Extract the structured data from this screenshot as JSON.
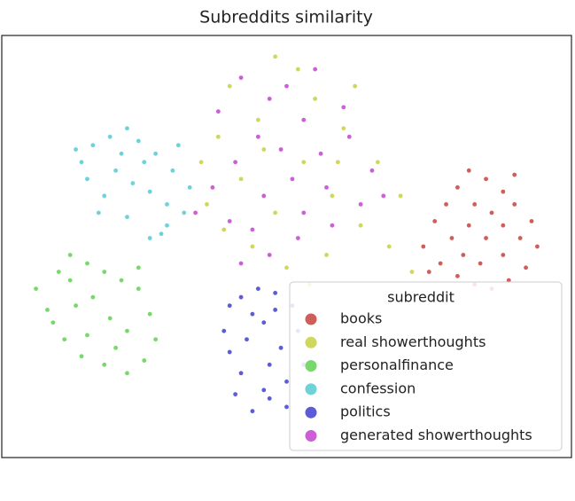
{
  "chart_data": {
    "type": "scatter",
    "title": "Subreddits similarity",
    "legend_title": "subreddit",
    "legend": "lower right",
    "xlim": [
      0,
      100
    ],
    "ylim": [
      0,
      100
    ],
    "series": [
      {
        "name": "books",
        "color": "#cf5e5a",
        "x": [
          74,
          76,
          78,
          80,
          82,
          85,
          88,
          90,
          93,
          94,
          92,
          89,
          86,
          83,
          80,
          77,
          79,
          82,
          85,
          88,
          86,
          83,
          81,
          88,
          91,
          84,
          75,
          90
        ],
        "y": [
          50,
          56,
          60,
          64,
          68,
          66,
          63,
          60,
          56,
          50,
          45,
          42,
          40,
          41,
          43,
          46,
          52,
          55,
          52,
          55,
          58,
          60,
          48,
          48,
          52,
          46,
          44,
          67
        ]
      },
      {
        "name": "real showerthoughts",
        "color": "#cfd85c",
        "x": [
          40,
          48,
          52,
          55,
          45,
          38,
          60,
          66,
          70,
          63,
          57,
          50,
          44,
          36,
          42,
          53,
          58,
          48,
          62,
          35,
          68,
          54,
          46,
          39,
          72,
          59
        ],
        "y": [
          88,
          95,
          92,
          85,
          80,
          76,
          78,
          70,
          62,
          55,
          48,
          45,
          50,
          60,
          66,
          70,
          62,
          58,
          88,
          70,
          50,
          41,
          73,
          54,
          44,
          70
        ]
      },
      {
        "name": "personalfinance",
        "color": "#79d86c",
        "x": [
          6,
          8,
          10,
          12,
          15,
          18,
          21,
          24,
          26,
          27,
          25,
          22,
          18,
          14,
          11,
          9,
          13,
          16,
          19,
          22,
          15,
          20,
          12,
          24
        ],
        "y": [
          40,
          35,
          44,
          48,
          46,
          44,
          42,
          40,
          34,
          28,
          23,
          20,
          22,
          24,
          28,
          32,
          36,
          38,
          33,
          30,
          29,
          26,
          42,
          45
        ]
      },
      {
        "name": "confession",
        "color": "#6dd3d9",
        "x": [
          14,
          16,
          19,
          22,
          24,
          27,
          30,
          33,
          32,
          29,
          26,
          22,
          18,
          15,
          20,
          23,
          26,
          29,
          21,
          25,
          17,
          28,
          13,
          31
        ],
        "y": [
          70,
          74,
          76,
          78,
          75,
          72,
          68,
          64,
          58,
          55,
          52,
          57,
          62,
          66,
          68,
          65,
          63,
          60,
          72,
          70,
          58,
          53,
          73,
          74
        ]
      },
      {
        "name": "politics",
        "color": "#5b5cd6",
        "x": [
          40,
          42,
          45,
          48,
          51,
          54,
          55,
          53,
          50,
          47,
          44,
          46,
          42,
          40,
          39,
          43,
          46,
          49,
          52,
          47,
          44,
          50,
          41,
          48
        ],
        "y": [
          36,
          38,
          40,
          39,
          36,
          32,
          27,
          22,
          18,
          14,
          11,
          16,
          20,
          25,
          30,
          28,
          32,
          26,
          30,
          22,
          34,
          12,
          15,
          35
        ]
      },
      {
        "name": "generated showerthoughts",
        "color": "#cc5fd7",
        "x": [
          42,
          47,
          50,
          53,
          45,
          41,
          37,
          34,
          40,
          46,
          51,
          56,
          61,
          65,
          63,
          58,
          52,
          47,
          42,
          55,
          60,
          67,
          49,
          44,
          57,
          38,
          53
        ],
        "y": [
          90,
          85,
          88,
          80,
          76,
          70,
          64,
          58,
          56,
          62,
          66,
          72,
          76,
          68,
          60,
          55,
          52,
          48,
          46,
          92,
          83,
          62,
          73,
          54,
          64,
          82,
          58
        ]
      }
    ]
  }
}
